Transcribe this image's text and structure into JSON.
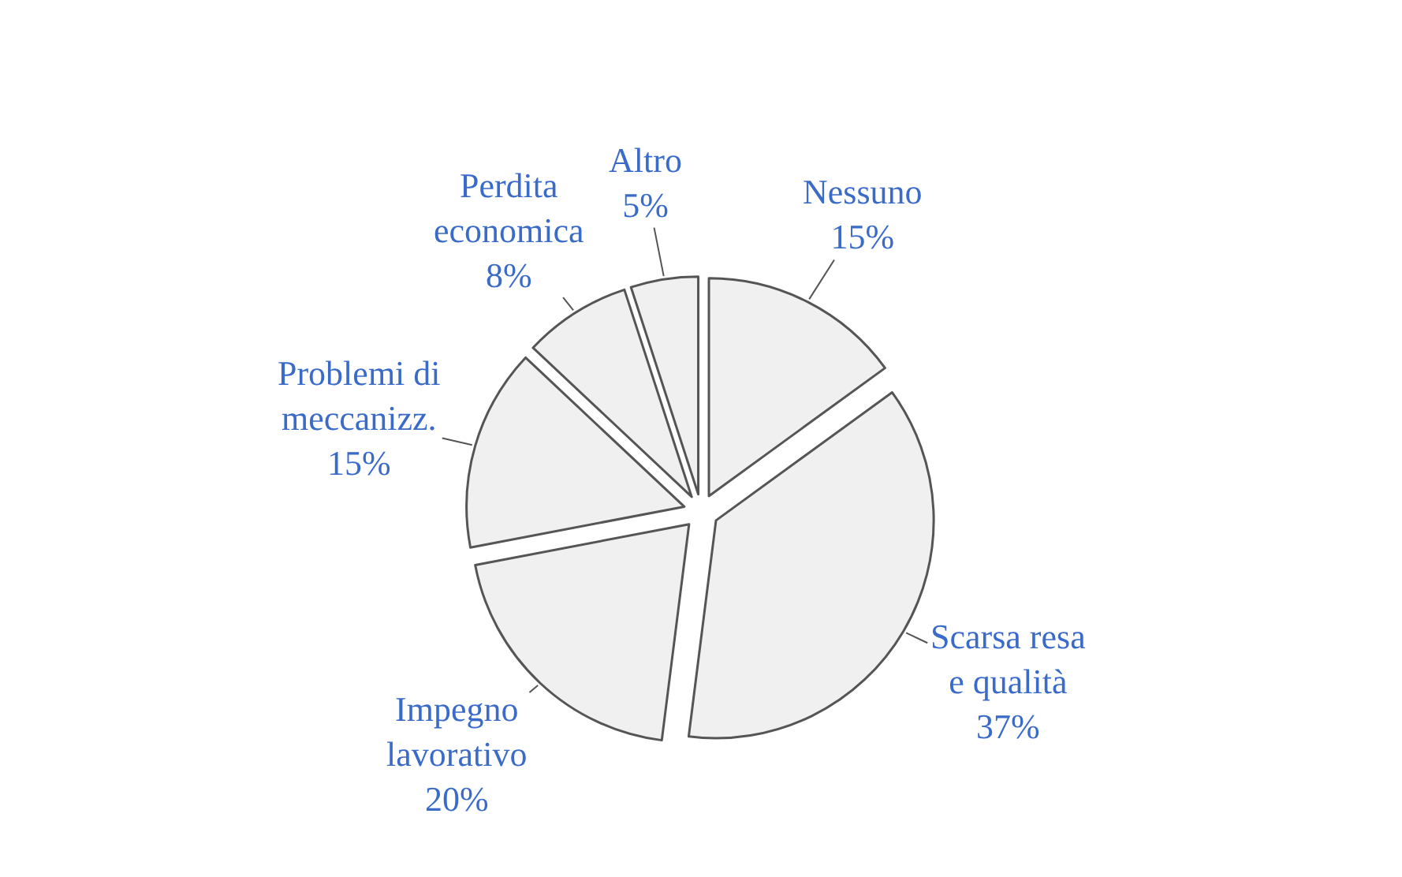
{
  "chart_data": {
    "type": "pie",
    "categories": [
      "Nessuno",
      "Scarsa resa e qualità",
      "Impegno lavorativo",
      "Problemi di meccanizz.",
      "Perdita economica",
      "Altro"
    ],
    "values": [
      15,
      37,
      20,
      15,
      8,
      5
    ],
    "value_labels": [
      "15%",
      "37%",
      "20%",
      "15%",
      "8%",
      "5%"
    ],
    "colors": [
      "#f0f0f0",
      "#f0f0f0",
      "#f0f0f0",
      "#f0f0f0",
      "#f0f0f0",
      "#f0f0f0"
    ]
  }
}
